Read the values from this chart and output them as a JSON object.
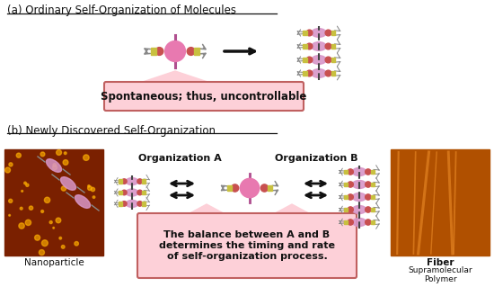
{
  "bg": "#ffffff",
  "title_a": "(a) Ordinary Self-Organization of Molecules",
  "title_b": "(b) Newly Discovered Self-Organization",
  "box_a_text": "Spontaneous; thus, uncontrollable",
  "box_b_text": "The balance between A and B\ndetermines the timing and rate\nof self-organization process.",
  "org_a": "Organization A",
  "org_b": "Organization B",
  "nano_label": "Nanoparticle",
  "fiber_label": "Fiber",
  "fiber_sub": "Supramolecular\nPolymer",
  "pink": "#e879b0",
  "pink_light": "#d896c8",
  "red_dot": "#c85050",
  "yellow": "#c8c040",
  "gray": "#888888",
  "black": "#111111",
  "box_fill": "#fdd0d8",
  "box_edge": "#c06060",
  "nano_bg": "#7a2000",
  "fiber_bg": "#b05000"
}
